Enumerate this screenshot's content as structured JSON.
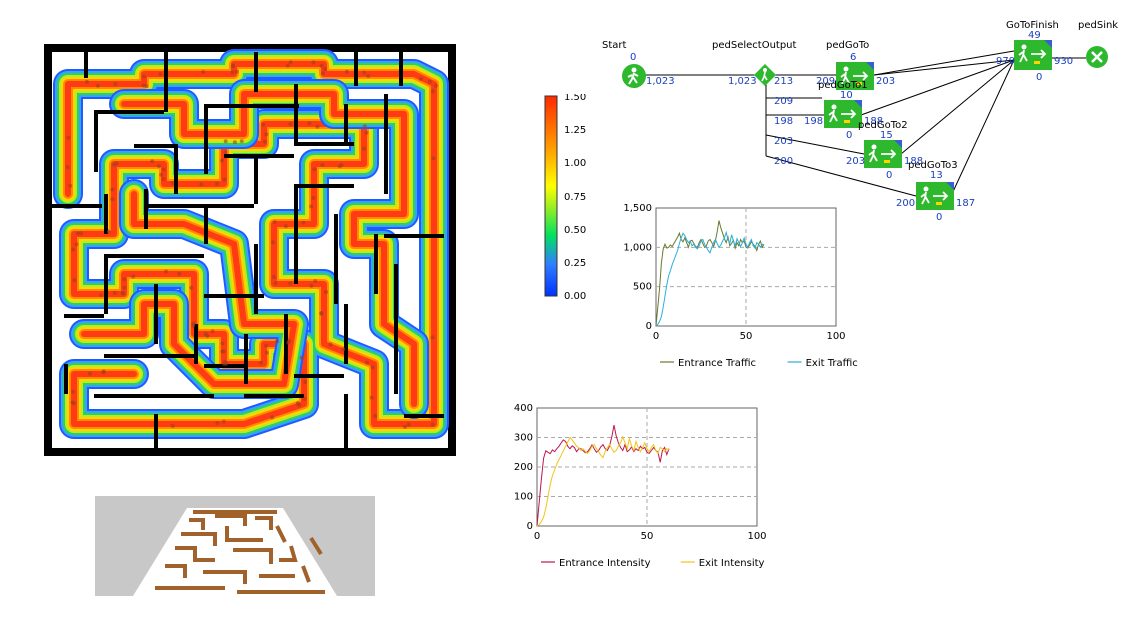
{
  "colorbar": {
    "ticks": [
      "1.50",
      "1.25",
      "1.00",
      "0.75",
      "0.50",
      "0.25",
      "0.00"
    ],
    "range": [
      0,
      1.5
    ]
  },
  "flowchart": {
    "blocks": [
      {
        "id": "start",
        "label": "Start",
        "counts": [
          "0",
          "1,023"
        ]
      },
      {
        "id": "select",
        "label": "pedSelectOutput",
        "counts": [
          "1,023",
          "213",
          "209",
          "198",
          "203",
          "200"
        ]
      },
      {
        "id": "goto0",
        "label": "pedGoTo",
        "counts": [
          "6",
          "209",
          "203"
        ]
      },
      {
        "id": "goto1",
        "label": "pedGoTo1",
        "counts": [
          "10",
          "198",
          "0",
          "188"
        ]
      },
      {
        "id": "goto2",
        "label": "pedGoTo2",
        "counts": [
          "15",
          "203",
          "0",
          "188"
        ]
      },
      {
        "id": "goto3",
        "label": "pedGoTo3",
        "counts": [
          "13",
          "200",
          "0",
          "187"
        ]
      },
      {
        "id": "finish",
        "label": "GoToFinish",
        "counts": [
          "49",
          "979",
          "0",
          "930"
        ]
      },
      {
        "id": "sink",
        "label": "pedSink",
        "counts": []
      }
    ],
    "colors": {
      "block": "#2eb82e",
      "count": "#1a3fbf"
    }
  },
  "chart_data": [
    {
      "type": "line",
      "x_ticks": [
        "0",
        "50",
        "100"
      ],
      "y_ticks": [
        "0",
        "500",
        "1,000",
        "1,500"
      ],
      "xlim": [
        0,
        100
      ],
      "ylim": [
        0,
        1500
      ],
      "series": [
        {
          "name": "Entrance Traffic",
          "color": "#6b7a2a",
          "x": [
            0,
            2,
            3,
            4,
            5,
            6,
            7,
            8,
            9,
            10,
            11,
            12,
            13,
            14,
            15,
            16,
            17,
            18,
            19,
            20,
            21,
            22,
            23,
            24,
            25,
            26,
            27,
            28,
            29,
            30,
            31,
            32,
            33,
            34,
            35,
            36,
            37,
            38,
            39,
            40,
            41,
            42,
            43,
            44,
            45,
            46,
            47,
            48,
            49,
            50,
            51,
            52,
            53,
            54,
            55,
            56,
            57,
            58,
            59,
            60
          ],
          "y": [
            0,
            480,
            800,
            980,
            1040,
            990,
            1000,
            1030,
            1010,
            1050,
            1090,
            1130,
            1180,
            1100,
            1070,
            1120,
            1060,
            1000,
            1080,
            1090,
            1050,
            1010,
            1000,
            1060,
            1100,
            1050,
            1000,
            1020,
            1080,
            1100,
            1060,
            1010,
            1080,
            1200,
            1340,
            1250,
            1180,
            1110,
            1060,
            1130,
            1020,
            1050,
            1090,
            990,
            1060,
            1020,
            1100,
            1060,
            1080,
            1000,
            990,
            1030,
            1070,
            1040,
            1010,
            960,
            1040,
            1080,
            1000,
            1040
          ]
        },
        {
          "name": "Exit Traffic",
          "color": "#2aaee0",
          "x": [
            0,
            1,
            2,
            3,
            4,
            5,
            6,
            7,
            8,
            9,
            10,
            11,
            12,
            13,
            14,
            15,
            16,
            17,
            18,
            19,
            20,
            21,
            22,
            23,
            24,
            25,
            26,
            27,
            28,
            29,
            30,
            31,
            32,
            33,
            34,
            35,
            36,
            37,
            38,
            39,
            40,
            41,
            42,
            43,
            44,
            45,
            46,
            47,
            48,
            49,
            50,
            51,
            52,
            53,
            54,
            55,
            56,
            57,
            58,
            59,
            60
          ],
          "y": [
            0,
            20,
            60,
            120,
            240,
            380,
            520,
            640,
            700,
            780,
            840,
            900,
            960,
            1050,
            1120,
            1180,
            1150,
            1100,
            1060,
            1080,
            1020,
            1040,
            1000,
            980,
            1020,
            1080,
            1100,
            1040,
            1000,
            960,
            930,
            1000,
            1060,
            1100,
            1050,
            1000,
            1030,
            1080,
            1120,
            1190,
            1100,
            1050,
            1160,
            1080,
            1020,
            1110,
            1060,
            1010,
            1060,
            1120,
            1040,
            1000,
            1060,
            1100,
            1020,
            990,
            1060,
            1040,
            1000,
            1040,
            1030
          ]
        }
      ]
    },
    {
      "type": "line",
      "x_ticks": [
        "0",
        "50",
        "100"
      ],
      "y_ticks": [
        "0",
        "100",
        "200",
        "300",
        "400"
      ],
      "xlim": [
        0,
        100
      ],
      "ylim": [
        0,
        400
      ],
      "series": [
        {
          "name": "Entrance Intensity",
          "color": "#c0154a",
          "x": [
            0,
            2,
            3,
            4,
            5,
            6,
            7,
            8,
            9,
            10,
            11,
            12,
            13,
            14,
            15,
            16,
            17,
            18,
            19,
            20,
            21,
            22,
            23,
            24,
            25,
            26,
            27,
            28,
            29,
            30,
            31,
            32,
            33,
            34,
            35,
            36,
            37,
            38,
            39,
            40,
            41,
            42,
            43,
            44,
            45,
            46,
            47,
            48,
            49,
            50,
            51,
            52,
            53,
            54,
            55,
            56,
            57,
            58,
            59,
            60
          ],
          "y": [
            0,
            160,
            230,
            255,
            250,
            245,
            258,
            252,
            262,
            270,
            282,
            292,
            286,
            270,
            262,
            272,
            266,
            252,
            262,
            262,
            255,
            248,
            252,
            262,
            275,
            262,
            250,
            256,
            268,
            276,
            262,
            256,
            272,
            302,
            342,
            305,
            282,
            266,
            256,
            276,
            252,
            258,
            268,
            252,
            262,
            256,
            270,
            262,
            266,
            250,
            246,
            256,
            266,
            256,
            250,
            216,
            256,
            266,
            242,
            262
          ]
        },
        {
          "name": "Exit Intensity",
          "color": "#f2c416",
          "x": [
            0,
            1,
            2,
            3,
            4,
            5,
            6,
            7,
            8,
            9,
            10,
            11,
            12,
            13,
            14,
            15,
            16,
            17,
            18,
            19,
            20,
            21,
            22,
            23,
            24,
            25,
            26,
            27,
            28,
            29,
            30,
            31,
            32,
            33,
            34,
            35,
            36,
            37,
            38,
            39,
            40,
            41,
            42,
            43,
            44,
            45,
            46,
            47,
            48,
            49,
            50,
            51,
            52,
            53,
            54,
            55,
            56,
            57,
            58,
            59,
            60
          ],
          "y": [
            0,
            5,
            15,
            30,
            60,
            100,
            140,
            170,
            190,
            210,
            225,
            240,
            255,
            270,
            285,
            300,
            292,
            282,
            270,
            266,
            256,
            262,
            252,
            246,
            256,
            270,
            276,
            262,
            252,
            240,
            232,
            252,
            266,
            276,
            262,
            250,
            256,
            270,
            282,
            302,
            282,
            262,
            296,
            272,
            256,
            286,
            266,
            252,
            266,
            282,
            262,
            252,
            266,
            276,
            256,
            246,
            266,
            262,
            252,
            262,
            258
          ]
        }
      ]
    }
  ]
}
